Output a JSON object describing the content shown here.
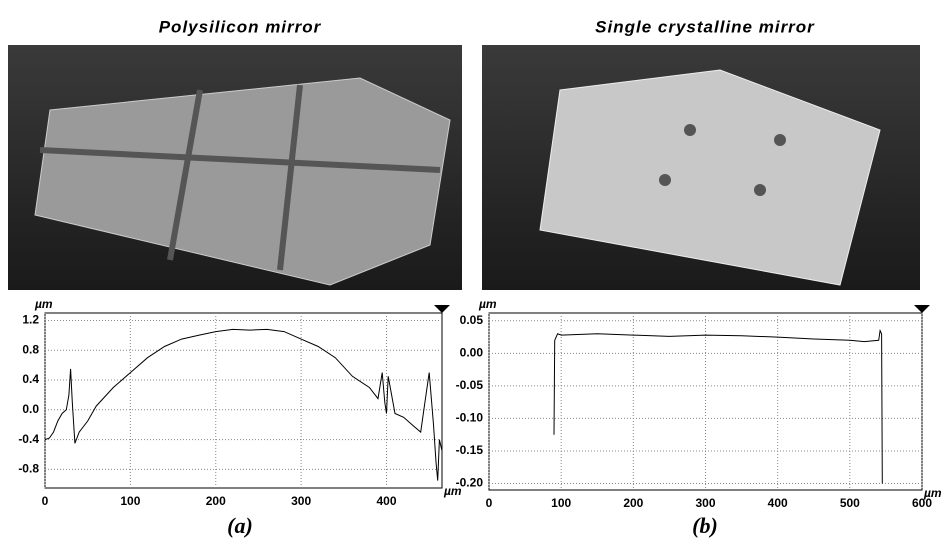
{
  "chart_data": [
    {
      "type": "line",
      "title": "Polysilicon mirror",
      "caption": "(a)",
      "x_label": "µm",
      "y_label": "µm",
      "x": [
        0,
        5,
        10,
        15,
        20,
        25,
        28,
        30,
        32,
        35,
        40,
        50,
        60,
        80,
        100,
        120,
        140,
        160,
        180,
        200,
        220,
        240,
        260,
        280,
        300,
        320,
        340,
        360,
        380,
        390,
        395,
        398,
        400,
        402,
        410,
        420,
        430,
        440,
        445,
        450,
        455,
        458,
        460,
        462,
        465
      ],
      "series": [
        {
          "color": "#000000",
          "values": [
            -0.4,
            -0.38,
            -0.3,
            -0.15,
            -0.05,
            0.0,
            0.2,
            0.55,
            0.1,
            -0.45,
            -0.3,
            -0.15,
            0.05,
            0.3,
            0.5,
            0.7,
            0.85,
            0.95,
            1.0,
            1.05,
            1.08,
            1.07,
            1.08,
            1.05,
            0.95,
            0.85,
            0.7,
            0.45,
            0.3,
            0.15,
            0.5,
            0.1,
            -0.05,
            0.45,
            -0.05,
            -0.1,
            -0.2,
            -0.3,
            0.1,
            0.5,
            -0.2,
            -0.7,
            -0.95,
            -0.4,
            -0.55
          ]
        }
      ],
      "xlim": [
        0,
        465
      ],
      "xticks": [
        0,
        100,
        200,
        300,
        400
      ],
      "ylim": [
        -1.05,
        1.3
      ],
      "yticks": [
        1.2,
        0.8,
        0.4,
        {
          "value": 0,
          "label": "0.0"
        },
        -0.4,
        -0.8
      ],
      "grid": true
    },
    {
      "type": "line",
      "title": "Single crystalline mirror",
      "caption": "(b)",
      "x_label": "µm",
      "y_label": "µm",
      "x": [
        90,
        91,
        95,
        100,
        150,
        200,
        250,
        300,
        350,
        400,
        450,
        500,
        520,
        540,
        542,
        544,
        545
      ],
      "series": [
        {
          "color": "#000000",
          "values": [
            -0.125,
            0.02,
            0.03,
            0.028,
            0.03,
            0.028,
            0.026,
            0.028,
            0.027,
            0.025,
            0.022,
            0.02,
            0.018,
            0.02,
            0.035,
            0.03,
            -0.2
          ]
        }
      ],
      "xlim": [
        0,
        600
      ],
      "xticks": [
        0,
        100,
        200,
        300,
        400,
        500,
        600
      ],
      "ylim": [
        -0.21,
        0.062
      ],
      "yticks": [
        0.05,
        {
          "value": 0,
          "label": "0.00"
        },
        -0.05,
        {
          "value": -0.1,
          "label": "-0.10"
        },
        -0.15,
        {
          "value": -0.2,
          "label": "-0.20"
        }
      ],
      "grid": true
    }
  ]
}
